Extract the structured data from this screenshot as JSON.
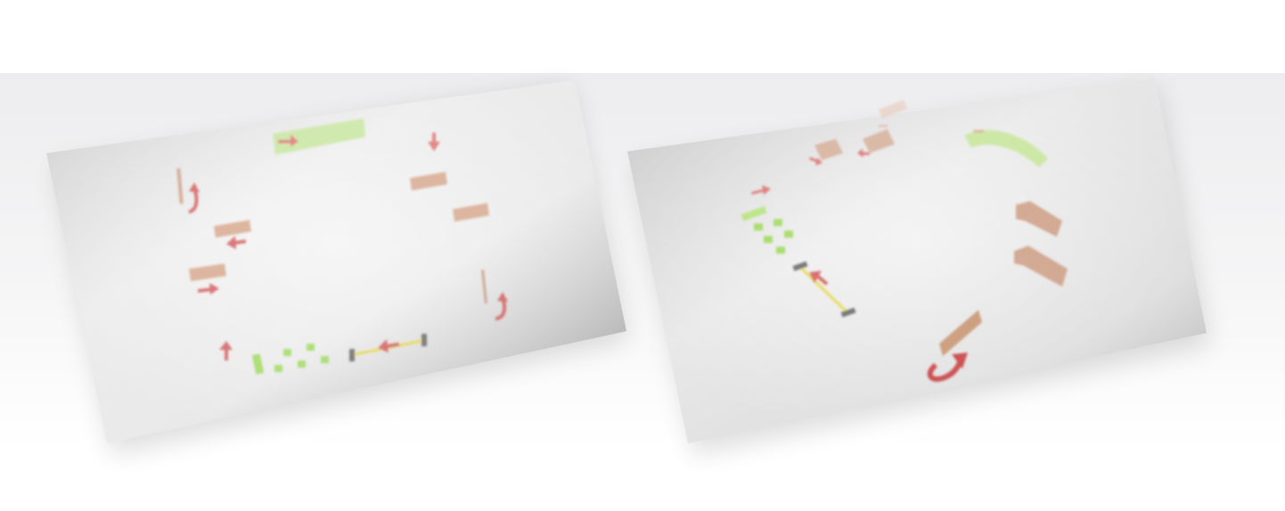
{
  "scene": {
    "background": "#ffffff",
    "stage_color": "#eeeef0",
    "colors": {
      "board_light": "#f1f1f1",
      "board_dark": "#a9a9a9",
      "arrow": "#d65a5a",
      "arrow_strong": "#c93a3a",
      "block": "#d9a98f",
      "block_dark": "#c9926f",
      "green": "#a8e06a",
      "rail": "#e7d84a",
      "rail_end": "#6b6b6b"
    },
    "panels": [
      {
        "id": "left-panel",
        "label": ""
      },
      {
        "id": "right-panel",
        "label": ""
      }
    ]
  }
}
